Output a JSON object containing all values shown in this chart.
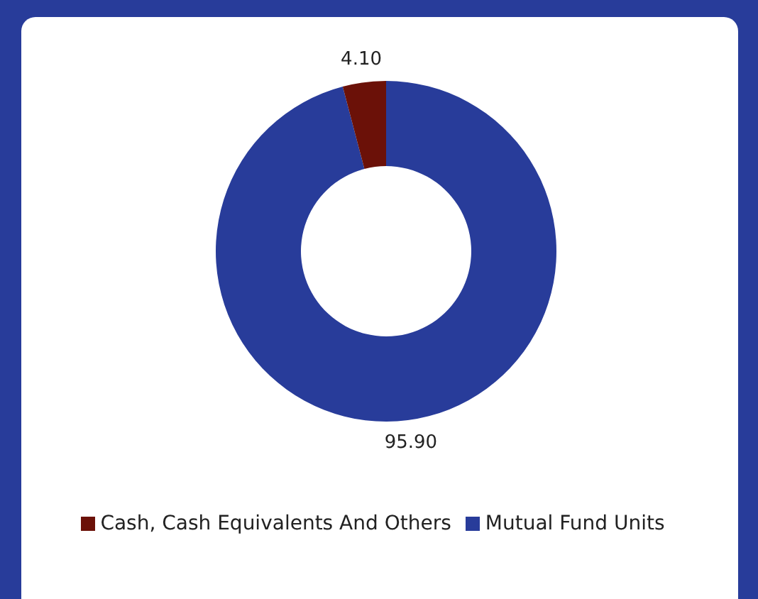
{
  "chart_data": {
    "type": "donut",
    "categories": [
      "Mutual Fund Units",
      "Cash, Cash Equivalents And Others"
    ],
    "values": [
      95.9,
      4.1
    ],
    "colors": [
      "#283c9a",
      "#6b1108"
    ],
    "value_labels": [
      "95.90",
      "4.10"
    ],
    "legend": "bottom"
  }
}
